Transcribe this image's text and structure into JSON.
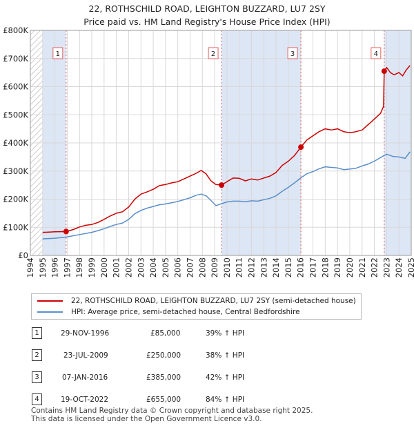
{
  "title": "22, ROTHSCHILD ROAD, LEIGHTON BUZZARD, LU7 2SY",
  "subtitle": "Price paid vs. HM Land Registry's House Price Index (HPI)",
  "colors": {
    "property": "#cc0000",
    "hpi": "#5b8ec9",
    "shade": "#dde6f5",
    "grid": "#d8d8d8",
    "vline": "#e06060"
  },
  "chart_data": {
    "type": "line",
    "title": "22, ROTHSCHILD ROAD, LEIGHTON BUZZARD, LU7 2SY",
    "subtitle": "Price paid vs. HM Land Registry's House Price Index (HPI)",
    "xlim": [
      1994,
      2025
    ],
    "ylim": [
      0,
      800000
    ],
    "yticks": [
      0,
      100000,
      200000,
      300000,
      400000,
      500000,
      600000,
      700000,
      800000
    ],
    "ytick_labels": [
      "£0",
      "£100K",
      "£200K",
      "£300K",
      "£400K",
      "£500K",
      "£600K",
      "£700K",
      "£800K"
    ],
    "xticks": [
      1994,
      1995,
      1996,
      1997,
      1998,
      1999,
      2000,
      2001,
      2002,
      2003,
      2004,
      2005,
      2006,
      2007,
      2008,
      2009,
      2010,
      2011,
      2012,
      2013,
      2014,
      2015,
      2016,
      2017,
      2018,
      2019,
      2020,
      2021,
      2022,
      2023,
      2024,
      2025
    ],
    "shaded_ranges": [
      [
        1995.0,
        1996.91
      ],
      [
        2009.56,
        2016.02
      ],
      [
        2022.8,
        2025.0
      ]
    ],
    "hatched_ranges": [
      [
        1994.0,
        1995.0
      ],
      [
        2024.9,
        2025.0
      ]
    ],
    "series": [
      {
        "name": "22, ROTHSCHILD ROAD, LEIGHTON BUZZARD, LU7 2SY (semi-detached house)",
        "color": "#cc0000",
        "x": [
          1995.0,
          1995.5,
          1996.0,
          1996.5,
          1996.91,
          1997.5,
          1998.0,
          1998.5,
          1999.0,
          1999.5,
          2000.0,
          2000.5,
          2001.0,
          2001.5,
          2002.0,
          2002.5,
          2003.0,
          2003.5,
          2004.0,
          2004.5,
          2005.0,
          2005.5,
          2006.0,
          2006.5,
          2007.0,
          2007.5,
          2007.9,
          2008.3,
          2008.7,
          2009.1,
          2009.56,
          2010.0,
          2010.5,
          2011.0,
          2011.5,
          2012.0,
          2012.5,
          2013.0,
          2013.5,
          2014.0,
          2014.5,
          2015.0,
          2015.5,
          2016.02,
          2016.5,
          2017.0,
          2017.5,
          2018.0,
          2018.5,
          2019.0,
          2019.5,
          2020.0,
          2020.5,
          2021.0,
          2021.5,
          2022.0,
          2022.5,
          2022.75,
          2022.8,
          2023.0,
          2023.3,
          2023.6,
          2024.0,
          2024.3,
          2024.6,
          2024.9
        ],
        "y": [
          82000,
          83000,
          84000,
          84500,
          85000,
          92000,
          101000,
          107000,
          110000,
          117000,
          128000,
          140000,
          150000,
          155000,
          172000,
          200000,
          218000,
          226000,
          235000,
          248000,
          252000,
          258000,
          262000,
          272000,
          282000,
          292000,
          302000,
          290000,
          265000,
          252000,
          250000,
          262000,
          275000,
          274000,
          265000,
          272000,
          268000,
          275000,
          282000,
          295000,
          320000,
          335000,
          355000,
          385000,
          410000,
          425000,
          440000,
          450000,
          446000,
          450000,
          440000,
          436000,
          440000,
          446000,
          465000,
          485000,
          505000,
          530000,
          655000,
          668000,
          650000,
          642000,
          650000,
          638000,
          660000,
          675000
        ]
      },
      {
        "name": "HPI: Average price, semi-detached house, Central Bedfordshire",
        "color": "#5b8ec9",
        "x": [
          1995.0,
          1995.5,
          1996.0,
          1996.5,
          1997.0,
          1997.5,
          1998.0,
          1998.5,
          1999.0,
          1999.5,
          2000.0,
          2000.5,
          2001.0,
          2001.5,
          2002.0,
          2002.5,
          2003.0,
          2003.5,
          2004.0,
          2004.5,
          2005.0,
          2005.5,
          2006.0,
          2006.5,
          2007.0,
          2007.5,
          2007.9,
          2008.3,
          2008.7,
          2009.1,
          2009.5,
          2010.0,
          2010.5,
          2011.0,
          2011.5,
          2012.0,
          2012.5,
          2013.0,
          2013.5,
          2014.0,
          2014.5,
          2015.0,
          2015.5,
          2016.0,
          2016.5,
          2017.0,
          2017.5,
          2018.0,
          2018.5,
          2019.0,
          2019.5,
          2020.0,
          2020.5,
          2021.0,
          2021.5,
          2022.0,
          2022.5,
          2023.0,
          2023.5,
          2024.0,
          2024.5,
          2024.9
        ],
        "y": [
          59000,
          60000,
          61000,
          63000,
          66000,
          70000,
          74000,
          78000,
          82000,
          88000,
          95000,
          103000,
          110000,
          115000,
          128000,
          148000,
          160000,
          168000,
          174000,
          180000,
          183000,
          187000,
          192000,
          198000,
          205000,
          214000,
          218000,
          212000,
          195000,
          177000,
          183000,
          190000,
          193000,
          193000,
          191000,
          194000,
          193000,
          198000,
          203000,
          212000,
          228000,
          242000,
          258000,
          275000,
          290000,
          298000,
          308000,
          315000,
          313000,
          311000,
          305000,
          307000,
          310000,
          318000,
          325000,
          335000,
          348000,
          360000,
          352000,
          350000,
          345000,
          368000
        ]
      }
    ],
    "sales": [
      {
        "label": "1",
        "x": 1996.91,
        "y": 85000
      },
      {
        "label": "2",
        "x": 2009.56,
        "y": 250000
      },
      {
        "label": "3",
        "x": 2016.02,
        "y": 385000
      },
      {
        "label": "4",
        "x": 2022.8,
        "y": 655000
      }
    ]
  },
  "legend": {
    "property": "22, ROTHSCHILD ROAD, LEIGHTON BUZZARD, LU7 2SY (semi-detached house)",
    "hpi": "HPI: Average price, semi-detached house, Central Bedfordshire"
  },
  "sales_table": [
    {
      "num": "1",
      "date": "29-NOV-1996",
      "price": "£85,000",
      "hpi": "39% ↑ HPI"
    },
    {
      "num": "2",
      "date": "23-JUL-2009",
      "price": "£250,000",
      "hpi": "38% ↑ HPI"
    },
    {
      "num": "3",
      "date": "07-JAN-2016",
      "price": "£385,000",
      "hpi": "42% ↑ HPI"
    },
    {
      "num": "4",
      "date": "19-OCT-2022",
      "price": "£655,000",
      "hpi": "84% ↑ HPI"
    }
  ],
  "footer": {
    "line1": "Contains HM Land Registry data © Crown copyright and database right 2025.",
    "line2": "This data is licensed under the Open Government Licence v3.0."
  }
}
